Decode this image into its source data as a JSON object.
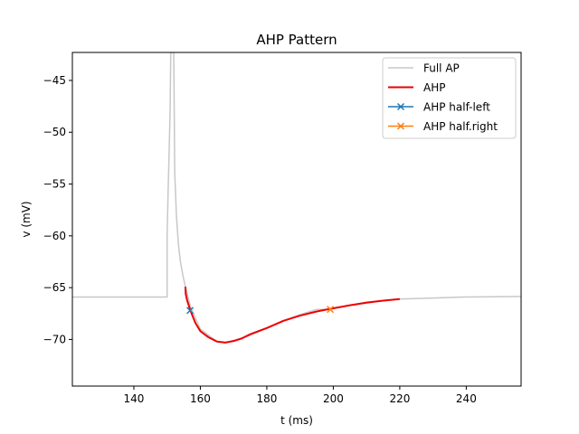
{
  "chart_data": {
    "type": "line",
    "title": "AHP Pattern",
    "xlabel": "t (ms)",
    "ylabel": "v (mV)",
    "xlim": [
      121.5,
      256.5
    ],
    "ylim": [
      -74.5,
      -42.3
    ],
    "xticks": [
      140,
      160,
      180,
      200,
      220,
      240
    ],
    "yticks": [
      -45,
      -50,
      -55,
      -60,
      -65,
      -70
    ],
    "grid": false,
    "legend_position": "top-right",
    "series": [
      {
        "name": "Full AP",
        "color": "#c8c8c8",
        "marker": "none",
        "points": [
          [
            121.5,
            -65.9
          ],
          [
            150.0,
            -65.9
          ],
          [
            150.0,
            -60.0
          ],
          [
            150.3,
            -55.8
          ],
          [
            150.6,
            -52.0
          ],
          [
            150.9,
            -48.0
          ],
          [
            151.1,
            -42.3
          ],
          [
            152.0,
            -42.3
          ],
          [
            152.3,
            -54.0
          ],
          [
            152.8,
            -58.0
          ],
          [
            153.4,
            -60.8
          ],
          [
            154.0,
            -62.5
          ],
          [
            154.8,
            -63.9
          ],
          [
            155.5,
            -64.9
          ],
          [
            157.0,
            -66.8
          ],
          [
            160.0,
            -69.0
          ],
          [
            165.0,
            -70.2
          ],
          [
            167.5,
            -70.3
          ],
          [
            170.0,
            -70.1
          ],
          [
            175.0,
            -69.6
          ],
          [
            180.0,
            -68.9
          ],
          [
            185.0,
            -68.2
          ],
          [
            190.0,
            -67.6
          ],
          [
            195.0,
            -67.1
          ],
          [
            199.0,
            -67.1
          ],
          [
            205.0,
            -66.7
          ],
          [
            210.0,
            -66.4
          ],
          [
            215.0,
            -66.25
          ],
          [
            220.0,
            -66.1
          ],
          [
            230.0,
            -66.0
          ],
          [
            240.0,
            -65.9
          ],
          [
            256.5,
            -65.85
          ]
        ]
      },
      {
        "name": "AHP",
        "color": "#ee0000",
        "marker": "none",
        "points": [
          [
            155.5,
            -64.9
          ],
          [
            155.6,
            -65.6
          ],
          [
            156.0,
            -66.2
          ],
          [
            157.0,
            -67.2
          ],
          [
            158.5,
            -68.4
          ],
          [
            160.0,
            -69.2
          ],
          [
            162.5,
            -69.8
          ],
          [
            165.0,
            -70.2
          ],
          [
            167.5,
            -70.3
          ],
          [
            170.0,
            -70.15
          ],
          [
            172.5,
            -69.9
          ],
          [
            175.0,
            -69.5
          ],
          [
            180.0,
            -68.9
          ],
          [
            185.0,
            -68.2
          ],
          [
            190.0,
            -67.7
          ],
          [
            195.0,
            -67.3
          ],
          [
            199.0,
            -67.05
          ],
          [
            205.0,
            -66.7
          ],
          [
            210.0,
            -66.45
          ],
          [
            215.0,
            -66.25
          ],
          [
            220.0,
            -66.1
          ]
        ]
      },
      {
        "name": "AHP half-left",
        "color": "#1f77b4",
        "marker": "x",
        "points": [
          [
            156.9,
            -67.2
          ]
        ]
      },
      {
        "name": "AHP half.right",
        "color": "#ff7f0e",
        "marker": "x",
        "points": [
          [
            199.1,
            -67.1
          ]
        ]
      }
    ]
  }
}
